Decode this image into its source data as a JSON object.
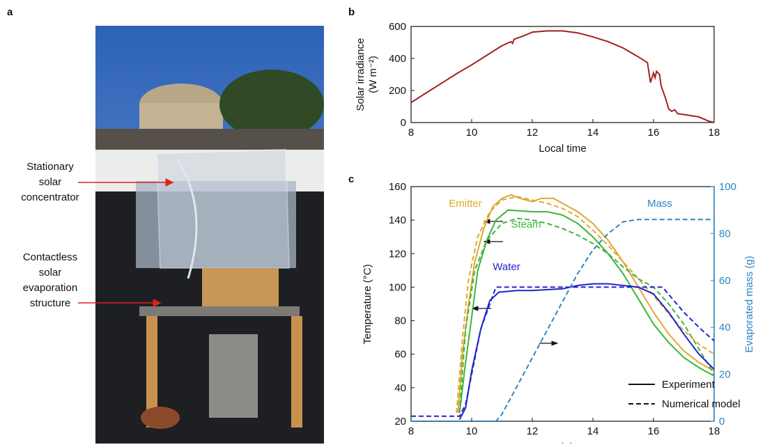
{
  "panel_labels": [
    "a",
    "b",
    "c"
  ],
  "photo_annotations": [
    [
      "Stationary",
      "solar",
      "concentrator"
    ],
    [
      "Contactless",
      "solar",
      "evaporation",
      "structure"
    ]
  ],
  "chart_data": [
    {
      "type": "line",
      "xlabel": "Local time",
      "ylabel": [
        "Solar irradiance",
        "(W m⁻²)"
      ],
      "xlim": [
        8,
        18
      ],
      "ylim": [
        0,
        600
      ],
      "xticks": [
        8,
        10,
        12,
        14,
        16,
        18
      ],
      "yticks": [
        0,
        200,
        400,
        600
      ],
      "series": [
        {
          "color": "#a31f1f",
          "x": [
            8,
            8.5,
            9,
            9.5,
            10,
            10.5,
            11,
            11.3,
            11.35,
            11.4,
            11.7,
            12,
            12.5,
            13,
            13.5,
            14,
            14.5,
            15,
            15.5,
            15.8,
            15.9,
            16,
            16.05,
            16.1,
            16.2,
            16.25,
            16.4,
            16.5,
            16.6,
            16.7,
            16.8,
            17,
            17.5,
            17.8,
            18
          ],
          "values": [
            125,
            185,
            245,
            305,
            360,
            420,
            480,
            505,
            495,
            520,
            540,
            565,
            572,
            572,
            560,
            535,
            505,
            465,
            410,
            375,
            250,
            310,
            280,
            320,
            300,
            230,
            150,
            85,
            70,
            80,
            55,
            50,
            35,
            10,
            0
          ]
        }
      ]
    },
    {
      "type": "dual-line",
      "xlabel": "Local time",
      "ylabel": "Temperature (°C)",
      "y2label": "Evaporated mass (g)",
      "xlim": [
        8,
        18
      ],
      "ylim": [
        20,
        160
      ],
      "y2lim": [
        0,
        100
      ],
      "xticks": [
        8,
        10,
        12,
        14,
        16,
        18
      ],
      "yticks": [
        20,
        40,
        60,
        80,
        100,
        120,
        140,
        160
      ],
      "y2ticks": [
        0,
        20,
        40,
        60,
        80,
        100
      ],
      "y2color": "#2a86c4",
      "legend": [
        {
          "label": "Experiment",
          "style": "solid"
        },
        {
          "label": "Numerical model",
          "style": "dashed"
        }
      ],
      "series": [
        {
          "name": "Emitter",
          "color": "#e0a82e",
          "experiment": {
            "x": [
              9.55,
              9.7,
              9.9,
              10.1,
              10.4,
              10.7,
              11,
              11.3,
              11.6,
              12,
              12.3,
              12.7,
              13,
              13.5,
              14,
              14.5,
              15,
              15.5,
              16,
              16.5,
              17,
              17.5,
              18
            ],
            "values": [
              25,
              60,
              90,
              115,
              135,
              148,
              153,
              155,
              153,
              151,
              153,
              153,
              150,
              145,
              138,
              128,
              115,
              100,
              85,
              72,
              62,
              55,
              50
            ]
          },
          "model": {
            "x": [
              9.5,
              9.7,
              9.9,
              10.2,
              10.6,
              11,
              11.5,
              12,
              12.5,
              13,
              13.5,
              14,
              14.5,
              15,
              15.5,
              16,
              16.5,
              17,
              17.5,
              18
            ],
            "values": [
              25,
              70,
              105,
              130,
              145,
              152,
              154,
              152,
              150,
              147,
              142,
              134,
              125,
              115,
              105,
              95,
              84,
              74,
              66,
              60
            ]
          }
        },
        {
          "name": "Steam",
          "color": "#3cb53c",
          "experiment": {
            "x": [
              9.6,
              9.8,
              10,
              10.2,
              10.5,
              10.8,
              11.2,
              12,
              12.5,
              13,
              13.5,
              14,
              14.5,
              15,
              15.5,
              16,
              16.5,
              17,
              17.5,
              18
            ],
            "values": [
              25,
              55,
              82,
              110,
              128,
              140,
              146,
              145,
              145,
              143,
              138,
              130,
              120,
              108,
              93,
              78,
              67,
              58,
              52,
              47
            ]
          },
          "model": {
            "x": [
              9.6,
              9.8,
              10.1,
              10.5,
              11,
              11.5,
              12,
              12.5,
              13,
              13.5,
              14,
              14.5,
              15,
              15.5,
              16,
              16.5,
              17,
              17.5,
              18
            ],
            "values": [
              25,
              75,
              110,
              128,
              138,
              141,
              140,
              138,
              135,
              131,
              126,
              120,
              112,
              105,
              100,
              90,
              78,
              63,
              48
            ]
          }
        },
        {
          "name": "Water",
          "color": "#2222cc",
          "experiment": {
            "x": [
              9.6,
              9.8,
              10,
              10.3,
              10.6,
              10.9,
              11.5,
              12,
              13,
              13.5,
              14,
              14.5,
              15,
              15.5,
              16,
              16.5,
              17,
              17.5,
              18
            ],
            "values": [
              21,
              28,
              50,
              75,
              92,
              97,
              98,
              98,
              99,
              101,
              102,
              102,
              101,
              100,
              96,
              85,
              72,
              60,
              51
            ]
          },
          "model": {
            "x": [
              8,
              9.6,
              9.8,
              10.3,
              10.8,
              11,
              16.3,
              17,
              17.5,
              18
            ],
            "values": [
              23,
              23,
              30,
              75,
              100,
              100,
              100,
              85,
              76,
              68
            ]
          }
        },
        {
          "name": "Mass",
          "color": "#2a86c4",
          "axis": "y2",
          "model": {
            "x": [
              8,
              10.8,
              11,
              11.5,
              12,
              12.5,
              13,
              13.5,
              14,
              14.5,
              15,
              15.5,
              16,
              18
            ],
            "values": [
              0,
              0,
              3,
              15,
              27,
              39,
              51,
              63,
              73,
              80,
              85,
              86,
              86,
              86
            ]
          }
        }
      ]
    }
  ]
}
